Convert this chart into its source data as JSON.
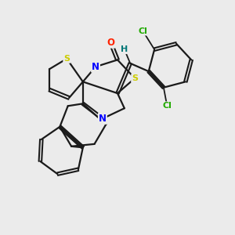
{
  "background_color": "#ebebeb",
  "bond_color": "#1a1a1a",
  "atom_colors": {
    "S": "#cccc00",
    "N": "#0000ff",
    "O": "#ff2200",
    "Cl": "#22aa00",
    "H": "#007777",
    "C": "#1a1a1a"
  },
  "figsize": [
    3.0,
    3.0
  ],
  "dpi": 100
}
